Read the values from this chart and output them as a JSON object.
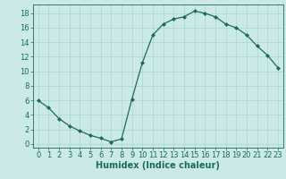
{
  "x": [
    0,
    1,
    2,
    3,
    4,
    5,
    6,
    7,
    8,
    9,
    10,
    11,
    12,
    13,
    14,
    15,
    16,
    17,
    18,
    19,
    20,
    21,
    22,
    23
  ],
  "y": [
    6,
    5,
    3.5,
    2.5,
    1.8,
    1.2,
    0.8,
    0.3,
    0.7,
    6.2,
    11.2,
    15.0,
    16.5,
    17.2,
    17.5,
    18.3,
    18.0,
    17.5,
    16.5,
    16.0,
    15.0,
    13.5,
    12.2,
    10.5
  ],
  "line_color": "#1a6b5a",
  "marker": "D",
  "marker_size": 2.0,
  "bg_color": "#cce9e9",
  "grid_color": "#aad4d4",
  "xlabel": "Humidex (Indice chaleur)",
  "xlabel_fontsize": 7,
  "tick_fontsize": 6,
  "xlim": [
    -0.5,
    23.5
  ],
  "ylim": [
    -0.5,
    19.2
  ],
  "yticks": [
    0,
    2,
    4,
    6,
    8,
    10,
    12,
    14,
    16,
    18
  ],
  "xticks": [
    0,
    1,
    2,
    3,
    4,
    5,
    6,
    7,
    8,
    9,
    10,
    11,
    12,
    13,
    14,
    15,
    16,
    17,
    18,
    19,
    20,
    21,
    22,
    23
  ]
}
